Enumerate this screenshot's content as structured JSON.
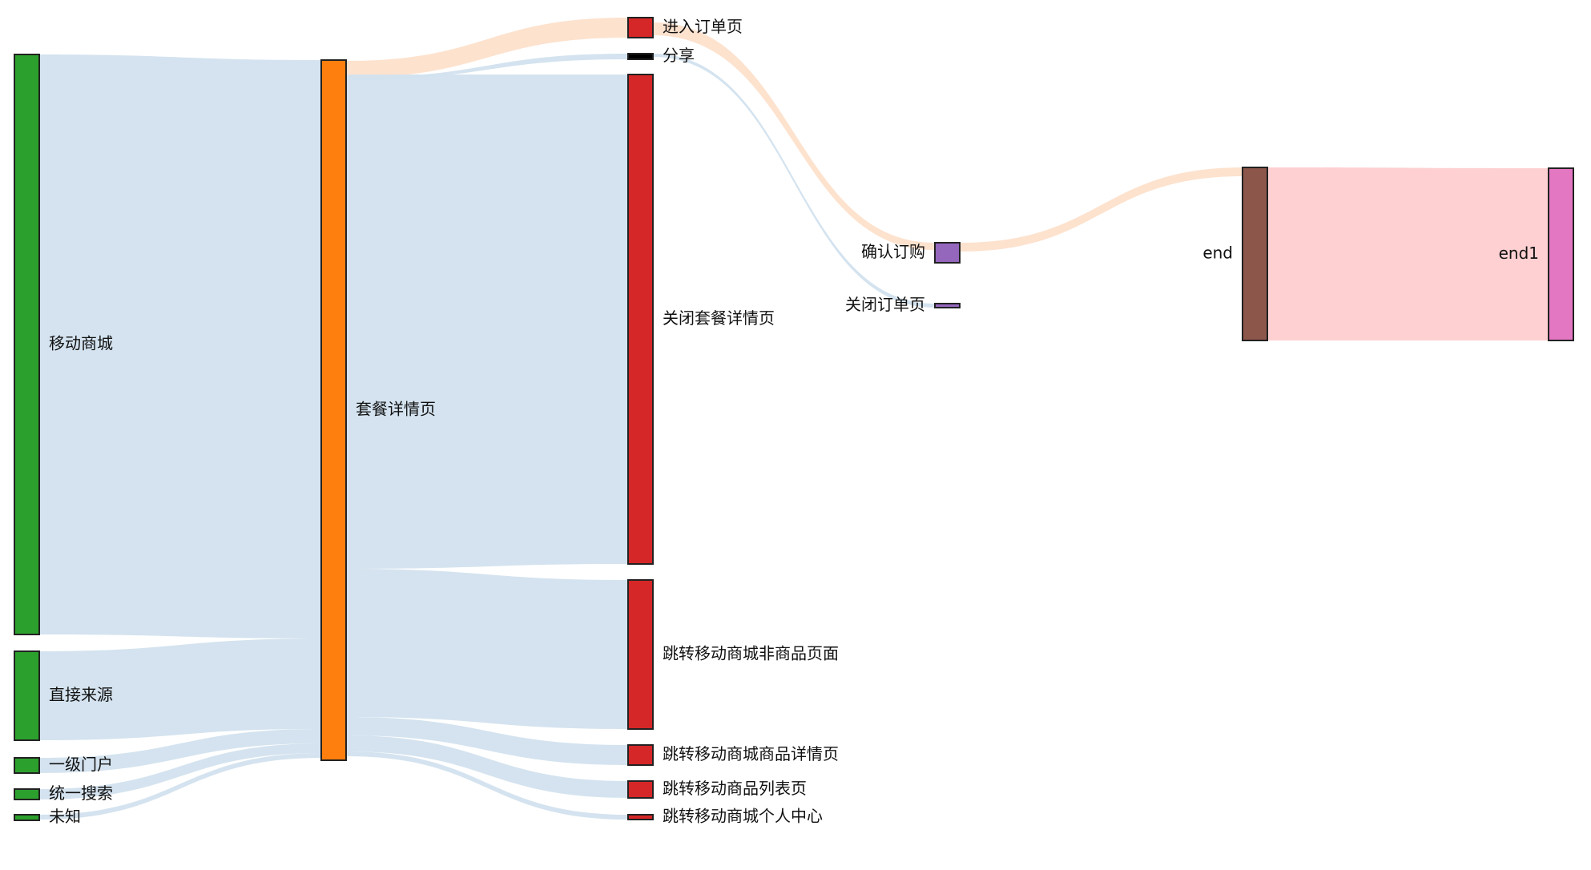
{
  "diagram": {
    "type": "sankey",
    "nodes": [
      {
        "id": "mobile_mall",
        "label": "移动商城",
        "color": "#2ca02c"
      },
      {
        "id": "direct",
        "label": "直接来源",
        "color": "#2ca02c"
      },
      {
        "id": "portal",
        "label": "一级门户",
        "color": "#2ca02c"
      },
      {
        "id": "search",
        "label": "统一搜索",
        "color": "#2ca02c"
      },
      {
        "id": "unknown",
        "label": "未知",
        "color": "#2ca02c"
      },
      {
        "id": "package_detail",
        "label": "套餐详情页",
        "color": "#ff7f0e"
      },
      {
        "id": "enter_order",
        "label": "进入订单页",
        "color": "#d62728"
      },
      {
        "id": "share",
        "label": "分享",
        "color": "#000000"
      },
      {
        "id": "close_package",
        "label": "关闭套餐详情页",
        "color": "#d62728"
      },
      {
        "id": "to_non_product",
        "label": "跳转移动商城非商品页面",
        "color": "#d62728"
      },
      {
        "id": "to_product_detail",
        "label": "跳转移动商城商品详情页",
        "color": "#d62728"
      },
      {
        "id": "to_product_list",
        "label": "跳转移动商品列表页",
        "color": "#d62728"
      },
      {
        "id": "to_personal",
        "label": "跳转移动商城个人中心",
        "color": "#d62728"
      },
      {
        "id": "confirm",
        "label": "确认订购",
        "color": "#9467bd"
      },
      {
        "id": "close_order",
        "label": "关闭订单页",
        "color": "#9467bd"
      },
      {
        "id": "end",
        "label": "end",
        "color": "#8c564b"
      },
      {
        "id": "end1",
        "label": "end1",
        "color": "#e377c2"
      }
    ],
    "links": [
      {
        "source": "mobile_mall",
        "target": "package_detail",
        "value": 700,
        "color": "#d2e1ee"
      },
      {
        "source": "direct",
        "target": "package_detail",
        "value": 108,
        "color": "#d2e1ee"
      },
      {
        "source": "portal",
        "target": "package_detail",
        "value": 20,
        "color": "#d2e1ee"
      },
      {
        "source": "search",
        "target": "package_detail",
        "value": 12,
        "color": "#d2e1ee"
      },
      {
        "source": "unknown",
        "target": "package_detail",
        "value": 6,
        "color": "#d2e1ee"
      },
      {
        "source": "package_detail",
        "target": "enter_order",
        "value": 22,
        "color": "#fde0cb"
      },
      {
        "source": "package_detail",
        "target": "share",
        "value": 6,
        "color": "#d2e1ee"
      },
      {
        "source": "package_detail",
        "target": "close_package",
        "value": 592,
        "color": "#d2e1ee"
      },
      {
        "source": "package_detail",
        "target": "to_non_product",
        "value": 180,
        "color": "#d2e1ee"
      },
      {
        "source": "package_detail",
        "target": "to_product_detail",
        "value": 24,
        "color": "#d2e1ee"
      },
      {
        "source": "package_detail",
        "target": "to_product_list",
        "value": 20,
        "color": "#d2e1ee"
      },
      {
        "source": "package_detail",
        "target": "to_personal",
        "value": 6,
        "color": "#d2e1ee"
      },
      {
        "source": "enter_order",
        "target": "confirm",
        "value": 22,
        "color": "#fde0cb"
      },
      {
        "source": "share",
        "target": "close_order",
        "value": 4,
        "color": "#d2e1ee"
      },
      {
        "source": "confirm",
        "target": "end",
        "value": 10,
        "color": "#fde0cb"
      },
      {
        "source": "end",
        "target": "end1",
        "value": 210,
        "color": "#fecdcf"
      }
    ]
  }
}
